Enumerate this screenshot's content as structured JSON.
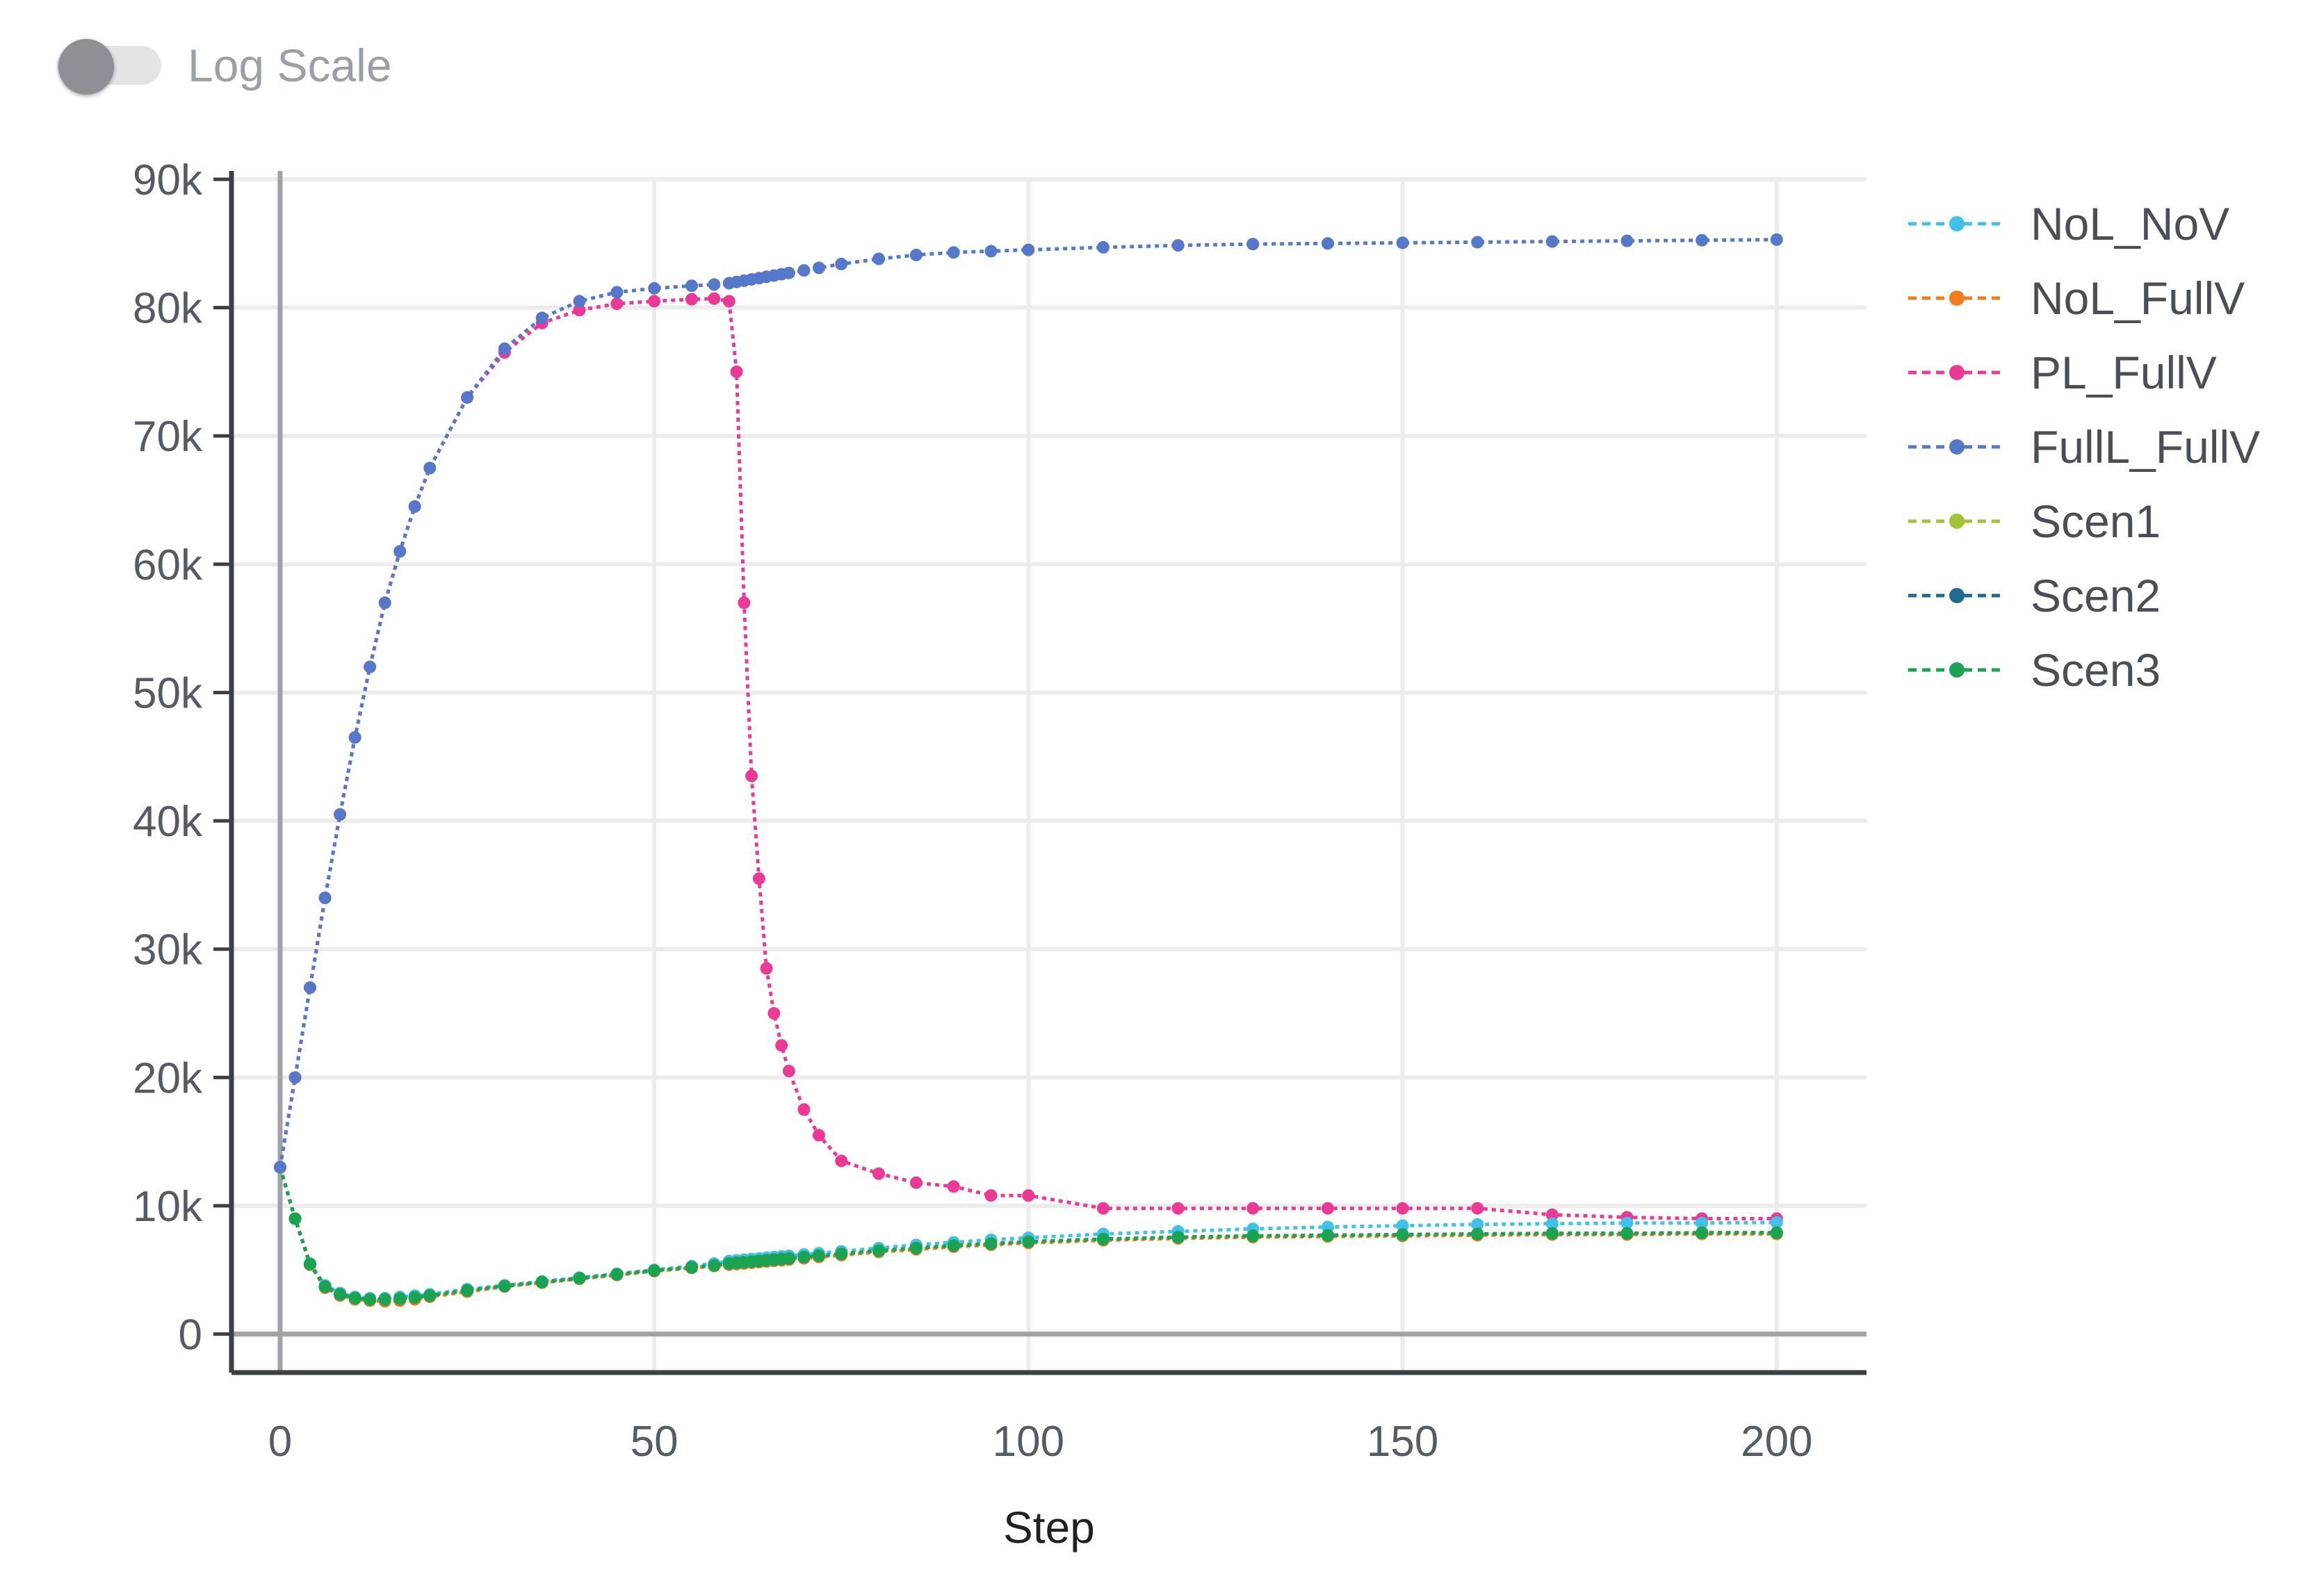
{
  "controls": {
    "log_scale_label": "Log Scale",
    "log_scale_on": false
  },
  "chart_data": {
    "type": "line",
    "xlabel": "Step",
    "ylabel": "",
    "xlim": [
      -6.5,
      212
    ],
    "ylim": [
      -3000,
      90000
    ],
    "x_ticks": [
      0,
      50,
      100,
      150,
      200
    ],
    "x_tick_labels": [
      "0",
      "50",
      "100",
      "150",
      "200"
    ],
    "y_ticks": [
      0,
      10000,
      20000,
      30000,
      40000,
      50000,
      60000,
      70000,
      80000,
      90000
    ],
    "y_tick_labels": [
      "0",
      "10k",
      "20k",
      "30k",
      "40k",
      "50k",
      "60k",
      "70k",
      "80k",
      "90k"
    ],
    "grid": true,
    "legend_position": "right",
    "x": [
      0,
      2,
      4,
      6,
      8,
      10,
      12,
      14,
      16,
      18,
      20,
      25,
      30,
      35,
      40,
      45,
      50,
      55,
      58,
      60,
      61,
      62,
      63,
      64,
      65,
      66,
      67,
      68,
      70,
      72,
      75,
      80,
      85,
      90,
      95,
      100,
      110,
      120,
      130,
      140,
      150,
      160,
      170,
      180,
      190,
      200
    ],
    "series": [
      {
        "name": "NoL_NoV",
        "color": "#3fc1e8",
        "values": [
          13000,
          9000,
          5500,
          3800,
          3200,
          2900,
          2800,
          2800,
          2900,
          3000,
          3100,
          3500,
          3800,
          4100,
          4400,
          4700,
          5000,
          5300,
          5500,
          5700,
          5750,
          5800,
          5850,
          5900,
          5950,
          6000,
          6050,
          6100,
          6200,
          6300,
          6450,
          6700,
          6950,
          7150,
          7350,
          7500,
          7800,
          8000,
          8200,
          8350,
          8450,
          8550,
          8600,
          8650,
          8650,
          8700
        ]
      },
      {
        "name": "NoL_FullV",
        "color": "#f27d1f",
        "values": [
          13000,
          9000,
          5400,
          3600,
          3000,
          2700,
          2600,
          2550,
          2600,
          2700,
          2900,
          3300,
          3700,
          4000,
          4300,
          4600,
          4900,
          5150,
          5300,
          5400,
          5450,
          5500,
          5550,
          5600,
          5650,
          5700,
          5750,
          5800,
          5900,
          6000,
          6150,
          6400,
          6600,
          6800,
          6950,
          7100,
          7300,
          7450,
          7550,
          7600,
          7650,
          7700,
          7750,
          7750,
          7800,
          7800
        ]
      },
      {
        "name": "PL_FullV",
        "color": "#ea3a96",
        "values": [
          13000,
          20000,
          27000,
          34000,
          40500,
          46500,
          52000,
          57000,
          61000,
          64500,
          67500,
          73000,
          76500,
          78800,
          79800,
          80300,
          80500,
          80650,
          80700,
          80500,
          75000,
          57000,
          43500,
          35500,
          28500,
          25000,
          22500,
          20500,
          17500,
          15500,
          13500,
          12500,
          11800,
          11500,
          10800,
          10800,
          9800,
          9800,
          9800,
          9800,
          9800,
          9800,
          9300,
          9100,
          9000,
          9000
        ]
      },
      {
        "name": "FullL_FullV",
        "color": "#5578c8",
        "values": [
          13000,
          20000,
          27000,
          34000,
          40500,
          46500,
          52000,
          57000,
          61000,
          64500,
          67500,
          73000,
          76800,
          79200,
          80500,
          81200,
          81500,
          81700,
          81800,
          81900,
          82000,
          82100,
          82200,
          82300,
          82400,
          82500,
          82600,
          82700,
          82900,
          83100,
          83400,
          83800,
          84100,
          84300,
          84400,
          84500,
          84700,
          84850,
          84950,
          85000,
          85050,
          85100,
          85150,
          85200,
          85250,
          85300
        ]
      },
      {
        "name": "Scen1",
        "color": "#a5c339",
        "values": [
          13000,
          9000,
          5450,
          3700,
          3100,
          2800,
          2700,
          2700,
          2750,
          2850,
          3000,
          3400,
          3750,
          4050,
          4350,
          4650,
          4950,
          5200,
          5350,
          5500,
          5550,
          5600,
          5650,
          5700,
          5750,
          5800,
          5850,
          5900,
          6000,
          6100,
          6250,
          6500,
          6700,
          6900,
          7050,
          7200,
          7400,
          7550,
          7650,
          7700,
          7750,
          7800,
          7850,
          7850,
          7900,
          7900
        ]
      },
      {
        "name": "Scen2",
        "color": "#1d6b8f",
        "values": [
          13000,
          9000,
          5450,
          3700,
          3100,
          2800,
          2700,
          2700,
          2750,
          2850,
          3000,
          3400,
          3750,
          4050,
          4350,
          4650,
          4950,
          5200,
          5350,
          5500,
          5550,
          5600,
          5650,
          5700,
          5750,
          5800,
          5850,
          5900,
          6000,
          6100,
          6250,
          6500,
          6700,
          6900,
          7050,
          7200,
          7400,
          7550,
          7650,
          7700,
          7750,
          7800,
          7850,
          7850,
          7900,
          7900
        ]
      },
      {
        "name": "Scen3",
        "color": "#1aa452",
        "values": [
          13000,
          9000,
          5450,
          3700,
          3100,
          2800,
          2700,
          2700,
          2750,
          2850,
          3000,
          3400,
          3750,
          4050,
          4350,
          4650,
          4950,
          5200,
          5350,
          5500,
          5550,
          5600,
          5650,
          5700,
          5750,
          5800,
          5850,
          5900,
          6000,
          6100,
          6250,
          6500,
          6700,
          6900,
          7050,
          7200,
          7400,
          7550,
          7650,
          7700,
          7750,
          7800,
          7850,
          7850,
          7900,
          7900
        ]
      }
    ]
  }
}
